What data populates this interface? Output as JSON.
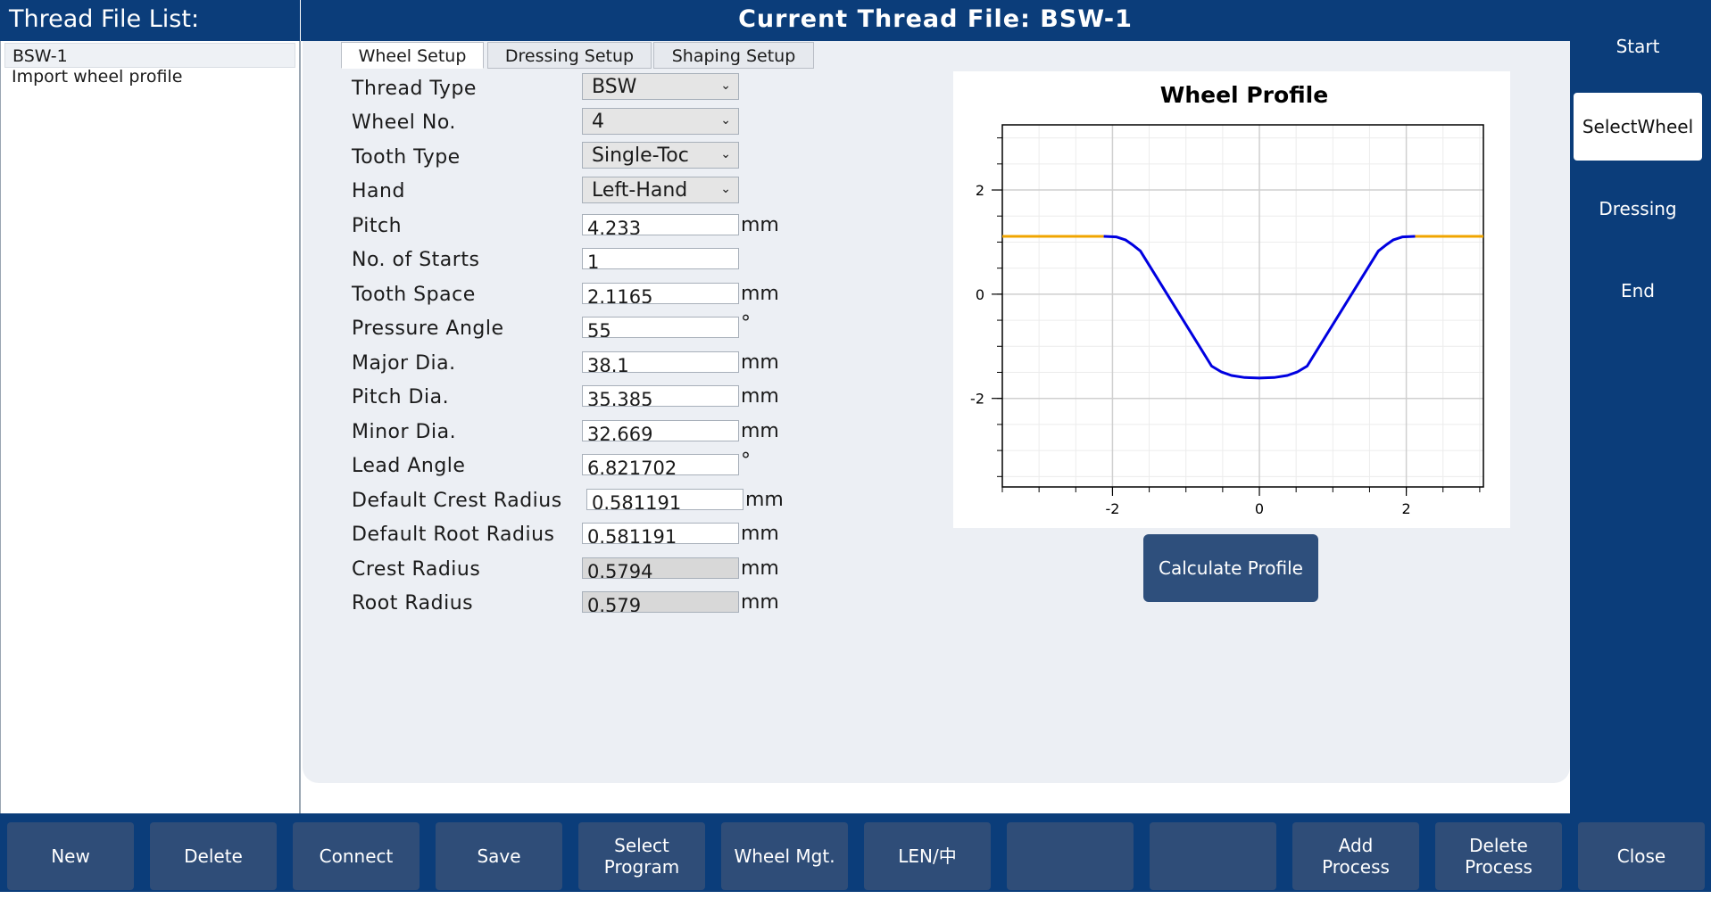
{
  "left_panel": {
    "title": "Thread File List:",
    "items": [
      "BSW-1",
      "Import wheel profile"
    ]
  },
  "header": {
    "title": "Current Thread File:  BSW-1"
  },
  "nav": {
    "items": [
      "Start",
      "SelectWheel",
      "Dressing",
      "End"
    ],
    "active": "SelectWheel"
  },
  "tabs": [
    "Wheel Setup",
    "Dressing Setup",
    "Shaping Setup"
  ],
  "form": {
    "thread_type": {
      "label": "Thread Type",
      "value": "BSW"
    },
    "wheel_no": {
      "label": "Wheel No.",
      "value": "4"
    },
    "tooth_type": {
      "label": "Tooth Type",
      "value": "Single-Toc"
    },
    "hand": {
      "label": "Hand",
      "value": "Left-Hand"
    },
    "pitch": {
      "label": "Pitch",
      "value": "4.233",
      "unit": "mm"
    },
    "starts": {
      "label": "No. of Starts",
      "value": "1"
    },
    "tooth_space": {
      "label": "Tooth Space",
      "value": "2.1165",
      "unit": "mm"
    },
    "pressure_angle": {
      "label": "Pressure Angle",
      "value": "55",
      "unit": "°"
    },
    "major_dia": {
      "label": "Major Dia.",
      "value": "38.1",
      "unit": "mm"
    },
    "pitch_dia": {
      "label": "Pitch Dia.",
      "value": "35.385",
      "unit": "mm"
    },
    "minor_dia": {
      "label": "Minor Dia.",
      "value": "32.669",
      "unit": "mm"
    },
    "lead_angle": {
      "label": "Lead Angle",
      "value": "6.821702",
      "unit": "°"
    },
    "default_crest_radius": {
      "label": "Default Crest Radius",
      "value": "0.581191",
      "unit": "mm"
    },
    "default_root_radius": {
      "label": "Default Root Radius",
      "value": "0.581191",
      "unit": "mm"
    },
    "crest_radius": {
      "label": "Crest Radius",
      "value": "0.5794",
      "unit": "mm"
    },
    "root_radius": {
      "label": "Root Radius",
      "value": "0.579",
      "unit": "mm"
    }
  },
  "chart_data": {
    "type": "line",
    "title": "Wheel Profile",
    "xlim": [
      -3.5,
      3.05
    ],
    "ylim": [
      -3.7,
      3.25
    ],
    "xticks": [
      -2,
      0,
      2
    ],
    "yticks": [
      -2,
      0,
      2
    ],
    "grid": true,
    "series": [
      {
        "color": "#f0a500",
        "x": [
          -3.5,
          -2.12
        ],
        "y": [
          1.11,
          1.11
        ]
      },
      {
        "color": "#0000e0",
        "x": [
          -2.12,
          -1.95,
          -1.82,
          -1.72,
          -1.62,
          -0.65,
          -0.52,
          -0.38,
          -0.2,
          0,
          0.2,
          0.38,
          0.52,
          0.65,
          1.62,
          1.72,
          1.82,
          1.95,
          2.12
        ],
        "y": [
          1.11,
          1.1,
          1.04,
          0.94,
          0.83,
          -1.38,
          -1.49,
          -1.56,
          -1.6,
          -1.61,
          -1.6,
          -1.56,
          -1.49,
          -1.38,
          0.83,
          0.94,
          1.04,
          1.1,
          1.11
        ]
      },
      {
        "color": "#f0a500",
        "x": [
          2.12,
          3.05
        ],
        "y": [
          1.11,
          1.11
        ]
      }
    ]
  },
  "calc_button": "Calculate Profile",
  "toolbar": [
    "New",
    "Delete",
    "Connect",
    "Save",
    "Select\nProgram",
    "Wheel Mgt.",
    "LEN/中",
    "",
    "",
    "Add\nProcess",
    "Delete\nProcess",
    "Close"
  ]
}
